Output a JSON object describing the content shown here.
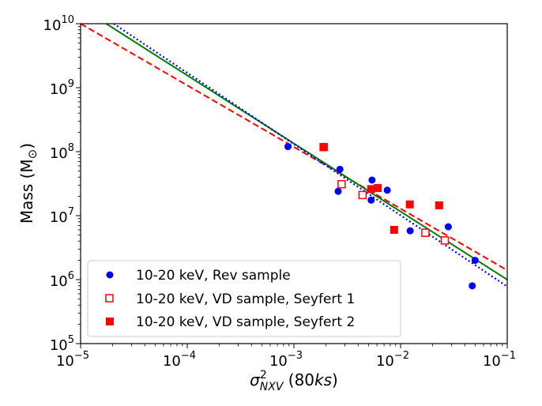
{
  "chart_data": {
    "type": "scatter",
    "xscale": "log",
    "yscale": "log",
    "xlim": [
      1e-05,
      0.1
    ],
    "ylim": [
      100000,
      10000000000
    ],
    "xlabel": {
      "base": "σ",
      "sup": "2",
      "sub": "NXV",
      "suffix_open": " (80",
      "suffix_italic": "ks",
      "suffix_close": ")"
    },
    "ylabel": {
      "text": "Mass (M",
      "sub": "⊙",
      "close": ")"
    },
    "x_ticks": [
      {
        "value": 1e-05,
        "base": "10",
        "exp": "−5"
      },
      {
        "value": 0.0001,
        "base": "10",
        "exp": "−4"
      },
      {
        "value": 0.001,
        "base": "10",
        "exp": "−3"
      },
      {
        "value": 0.01,
        "base": "10",
        "exp": "−2"
      },
      {
        "value": 0.1,
        "base": "10",
        "exp": "−1"
      }
    ],
    "y_ticks": [
      {
        "value": 100000,
        "base": "10",
        "exp": "5"
      },
      {
        "value": 1000000,
        "base": "10",
        "exp": "6"
      },
      {
        "value": 10000000,
        "base": "10",
        "exp": "7"
      },
      {
        "value": 100000000,
        "base": "10",
        "exp": "8"
      },
      {
        "value": 1000000000,
        "base": "10",
        "exp": "9"
      },
      {
        "value": 10000000000,
        "base": "10",
        "exp": "10"
      }
    ],
    "legend_position": "lower-left",
    "series": [
      {
        "name": "10-20 keV, Rev sample",
        "marker": "circle",
        "filled": true,
        "color": "#0000ff",
        "points": [
          [
            0.00088,
            120000000.0
          ],
          [
            0.0019,
            115000000.0
          ],
          [
            0.0027,
            53000000.0
          ],
          [
            0.0026,
            24000000.0
          ],
          [
            0.0054,
            36000000.0
          ],
          [
            0.0053,
            17500000.0
          ],
          [
            0.0075,
            25000000.0
          ],
          [
            0.0123,
            5800000.0
          ],
          [
            0.028,
            6700000.0
          ],
          [
            0.05,
            2000000.0
          ],
          [
            0.047,
            800000.0
          ]
        ]
      },
      {
        "name": "10-20 keV, VD sample, Seyfert 1",
        "marker": "square",
        "filled": false,
        "color": "#ff0000",
        "points": [
          [
            0.0019,
            118000000.0
          ],
          [
            0.0028,
            31000000.0
          ],
          [
            0.0044,
            21000000.0
          ],
          [
            0.0171,
            5400000.0
          ],
          [
            0.026,
            4100000.0
          ]
        ]
      },
      {
        "name": "10-20 keV, VD sample, Seyfert 2",
        "marker": "square",
        "filled": true,
        "color": "#ff0000",
        "points": [
          [
            0.0019,
            118000000.0
          ],
          [
            0.0053,
            26000000.0
          ],
          [
            0.0061,
            27000000.0
          ],
          [
            0.0087,
            6000000.0
          ],
          [
            0.0122,
            15000000.0
          ],
          [
            0.023,
            14500000.0
          ]
        ]
      }
    ],
    "fit_lines": [
      {
        "color": "#ff0000",
        "style": "dashed",
        "points": [
          [
            1e-05,
            10000000000.0
          ],
          [
            0.1,
            1400000.0
          ]
        ]
      },
      {
        "color": "#008000",
        "style": "solid",
        "points": [
          [
            1.74e-05,
            10000000000.0
          ],
          [
            0.1,
            1000000.0
          ]
        ]
      },
      {
        "color": "#0000ff",
        "style": "dotted",
        "points": [
          [
            2.04e-05,
            10000000000.0
          ],
          [
            0.1,
            780000.0
          ]
        ]
      }
    ]
  }
}
